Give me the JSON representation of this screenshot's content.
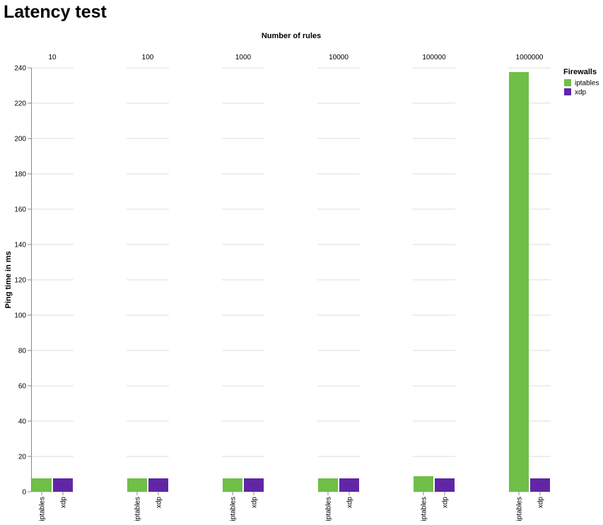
{
  "chart_data": {
    "type": "bar",
    "title": "Latency test",
    "facet_title": "Number of rules",
    "facets": [
      "10",
      "100",
      "1000",
      "10000",
      "100000",
      "1000000"
    ],
    "series": [
      {
        "name": "iptables",
        "color": "#6fbf48",
        "values": [
          7.6,
          7.6,
          7.6,
          7.6,
          8.8,
          237.6
        ]
      },
      {
        "name": "xdp",
        "color": "#6126a6",
        "values": [
          7.6,
          7.6,
          7.6,
          7.6,
          7.6,
          7.6
        ]
      }
    ],
    "ylabel": "Ping time in ms",
    "legend_title": "Firewalls",
    "ylim": [
      0,
      240
    ],
    "yticks": [
      0,
      20,
      40,
      60,
      80,
      100,
      120,
      140,
      160,
      180,
      200,
      220,
      240
    ],
    "grid": true
  }
}
